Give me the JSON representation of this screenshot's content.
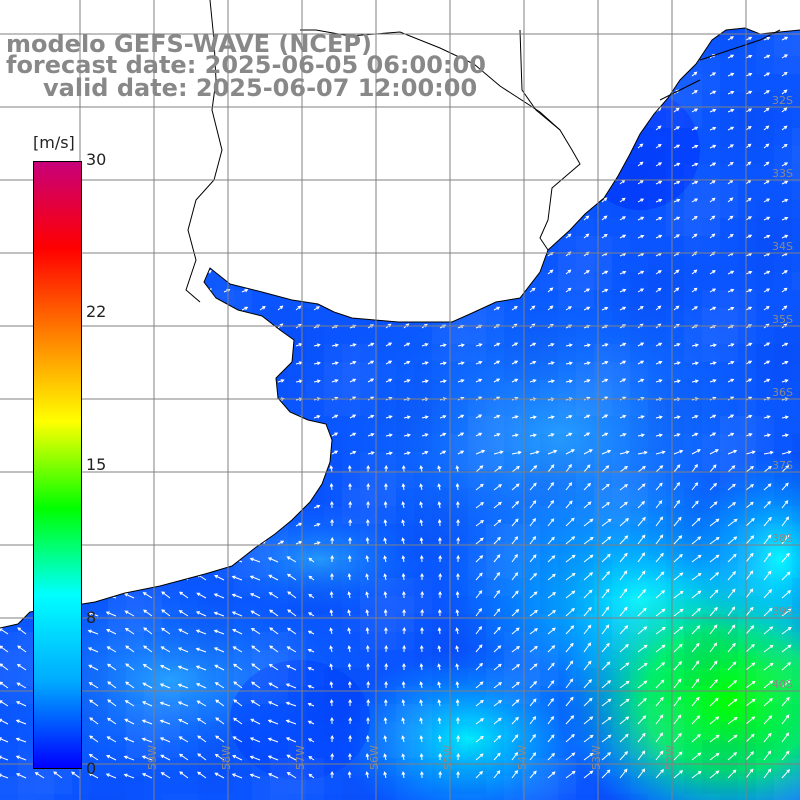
{
  "title": {
    "model": "modelo GEFS-WAVE (NCEP)",
    "forecast": "forecast date: 2025-06-05 06:00:00",
    "valid": "valid date: 2025-06-07 12:00:00"
  },
  "colorbar": {
    "units": "[m/s]",
    "ticks": [
      "30",
      "22",
      "15",
      "8",
      "0"
    ],
    "min": 0,
    "max": 30,
    "stops": [
      "#0000ff",
      "#00aaff",
      "#00ffff",
      "#00ff00",
      "#ffff00",
      "#ff8000",
      "#ff0000",
      "#c8007a"
    ]
  },
  "grid": {
    "lat_labels": [
      "32S",
      "33S",
      "34S",
      "35S",
      "36S",
      "37S",
      "38S",
      "39S",
      "40S"
    ],
    "lon_labels": [
      "59W",
      "58W",
      "57W",
      "56W",
      "55W",
      "54W",
      "53W",
      "52W"
    ]
  },
  "map": {
    "colors": {
      "land": "#ffffff",
      "coastline": "#000000",
      "gridline": "#808080",
      "arrow": "#ffffff"
    },
    "field_description": "wind speed and direction over the South Atlantic near the Rio de la Plata"
  }
}
